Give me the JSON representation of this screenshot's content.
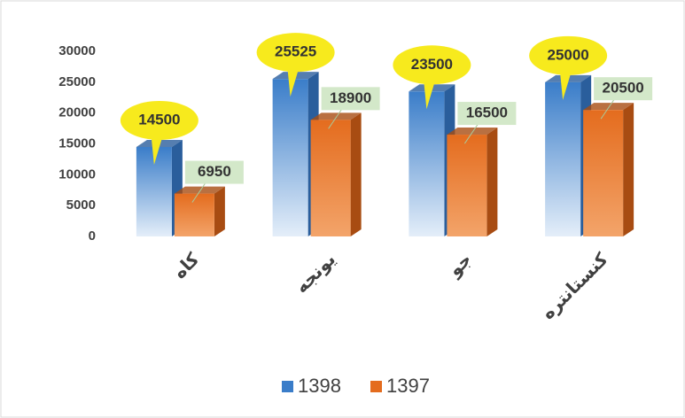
{
  "chart_data": {
    "type": "bar3d",
    "categories": [
      "کاه",
      "یونجه",
      "جو",
      "کنستانتره"
    ],
    "series": [
      {
        "name": "1398",
        "color": "#3a7dc9",
        "values": [
          14500,
          25525,
          23500,
          25000
        ]
      },
      {
        "name": "1397",
        "color": "#e46c1e",
        "values": [
          6950,
          18900,
          16500,
          20500
        ]
      }
    ],
    "ylim": [
      0,
      30000
    ],
    "yticks": [
      0,
      5000,
      10000,
      15000,
      20000,
      25000,
      30000
    ],
    "grid": false,
    "legend": "bottom"
  }
}
